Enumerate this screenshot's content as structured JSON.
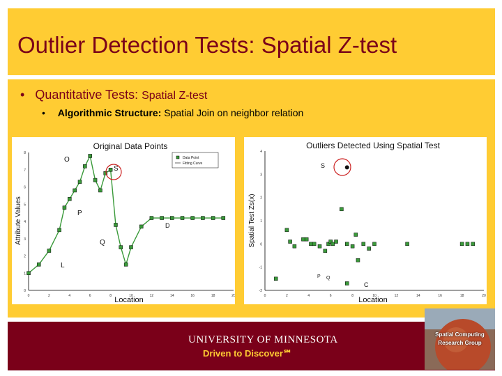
{
  "slide": {
    "title": "Outlier Detection Tests: Spatial Z-test",
    "bullet1_marker": "•",
    "bullet1_main": "Quantitative Tests: ",
    "bullet1_small": "Spatial Z-test",
    "bullet2_marker": "•",
    "bullet2_bold": "Algorithmic Structure: ",
    "bullet2_text": "Spatial Join on neighbor relation"
  },
  "footer": {
    "university": "UNIVERSITY OF MINNESOTA",
    "tagline": "Driven to Discover℠",
    "logo_line1": "Spatial Computing",
    "logo_line2": "Research Group"
  },
  "colors": {
    "maroon": "#7a0019",
    "gold": "#ffcc33",
    "marker_green": "#3a9a3a"
  },
  "chart_data": [
    {
      "type": "line",
      "title": "Original Data Points",
      "xlabel": "Location",
      "ylabel": "Attribute Values",
      "xlim": [
        0,
        20
      ],
      "ylim": [
        0,
        8
      ],
      "xticks": [
        "0",
        "2",
        "4",
        "6",
        "8",
        "10",
        "12",
        "14",
        "16",
        "18",
        "20"
      ],
      "yticks": [
        "0",
        "1",
        "2",
        "3",
        "4",
        "5",
        "6",
        "7",
        "8"
      ],
      "legend": [
        "Data Point",
        "Fitting Curve"
      ],
      "legend_position": "top-right",
      "series": [
        {
          "name": "Data Point",
          "x": [
            0,
            1,
            2,
            3,
            3.5,
            4,
            4.5,
            5,
            5.5,
            6,
            6.5,
            7,
            7.5,
            8,
            8.5,
            9,
            9.5,
            10,
            11,
            12,
            13,
            14,
            15,
            16,
            17,
            18,
            19
          ],
          "y": [
            1,
            1.5,
            2.3,
            3.5,
            4.8,
            5.3,
            5.8,
            6.3,
            7.2,
            7.8,
            6.4,
            5.8,
            6.8,
            7.0,
            3.8,
            2.5,
            1.5,
            2.5,
            3.7,
            4.2,
            4.2,
            4.2,
            4.2,
            4.2,
            4.2,
            4.2,
            4.2
          ]
        }
      ],
      "annotations": [
        "O",
        "S",
        "P",
        "Q",
        "D",
        "L"
      ]
    },
    {
      "type": "scatter",
      "title": "Outliers Detected Using Spatial Test",
      "xlabel": "Location",
      "ylabel": "Spatial Test Zs(x)",
      "xlim": [
        0,
        20
      ],
      "ylim": [
        -2,
        4
      ],
      "xticks": [
        "0",
        "2",
        "4",
        "6",
        "8",
        "10",
        "12",
        "14",
        "16",
        "18",
        "20"
      ],
      "yticks": [
        "-2",
        "-1",
        "0",
        "1",
        "2",
        "3",
        "4"
      ],
      "series": [
        {
          "name": "Zs(x)",
          "x": [
            1,
            2,
            2.3,
            2.7,
            3.5,
            3.8,
            4.2,
            4.5,
            5,
            5.5,
            5.8,
            6,
            6.2,
            6.5,
            7.5,
            8,
            8.3,
            9,
            9.5,
            10,
            13,
            18,
            18.5,
            19,
            8.5,
            7,
            7.5
          ],
          "y": [
            -1.5,
            0.6,
            0.1,
            -0.1,
            0.2,
            0.2,
            0.0,
            0.0,
            -0.1,
            -0.3,
            0.0,
            0.1,
            0.0,
            0.1,
            0.0,
            -0.1,
            0.4,
            0.0,
            -0.2,
            0.0,
            0.0,
            0.0,
            0.0,
            0.0,
            -0.7,
            1.5,
            -1.7
          ]
        }
      ],
      "outlier": {
        "x": 7.5,
        "y": 3.3
      },
      "annotations": [
        "S",
        "C",
        "P",
        "Q"
      ]
    }
  ]
}
